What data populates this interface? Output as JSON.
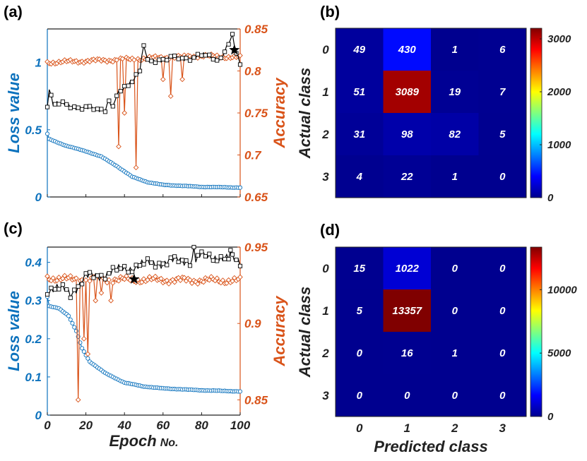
{
  "figure": {
    "panel_labels": [
      "(a)",
      "(b)",
      "(c)",
      "(d)"
    ],
    "colors": {
      "loss": "#0d72bd",
      "accuracy": "#d95319",
      "val_accuracy": "#000000"
    }
  },
  "chart_data": [
    {
      "panel": "(a)",
      "type": "line",
      "xlim": [
        0,
        100
      ],
      "ylabel_left": "Loss value",
      "ylabel_right": "Accuracy",
      "yticks_left": [
        "0",
        "0.5",
        "1"
      ],
      "yticks_right": [
        "0.65",
        "0.7",
        "0.75",
        "0.8",
        "0.85"
      ],
      "ylim_left": [
        0,
        1.25
      ],
      "ylim_right": [
        0.65,
        0.85
      ],
      "series": [
        {
          "name": "loss",
          "axis": "left",
          "marker": "circle",
          "anchors": [
            [
              0,
              0.47
            ],
            [
              1,
              0.43
            ],
            [
              10,
              0.38
            ],
            [
              20,
              0.34
            ],
            [
              28,
              0.3
            ],
            [
              36,
              0.23
            ],
            [
              44,
              0.15
            ],
            [
              52,
              0.11
            ],
            [
              60,
              0.09
            ],
            [
              80,
              0.075
            ],
            [
              100,
              0.07
            ]
          ]
        },
        {
          "name": "accuracy",
          "axis": "right",
          "marker": "diamond",
          "base": 0.81,
          "anchors": [
            [
              0,
              0.81
            ],
            [
              22,
              0.812
            ],
            [
              44,
              0.814
            ],
            [
              60,
              0.816
            ],
            [
              80,
              0.818
            ],
            [
              100,
              0.816
            ]
          ],
          "spikes": [
            [
              37,
              0.71
            ],
            [
              40,
              0.75
            ],
            [
              46,
              0.685
            ],
            [
              60,
              0.79
            ],
            [
              64,
              0.77
            ],
            [
              70,
              0.79
            ]
          ]
        },
        {
          "name": "val_accuracy",
          "axis": "right",
          "marker": "square",
          "anchors": [
            [
              0,
              0.76
            ],
            [
              1,
              0.78
            ],
            [
              3,
              0.76
            ],
            [
              10,
              0.76
            ],
            [
              20,
              0.755
            ],
            [
              30,
              0.755
            ],
            [
              32,
              0.765
            ],
            [
              34,
              0.755
            ],
            [
              36,
              0.77
            ],
            [
              40,
              0.78
            ],
            [
              48,
              0.8
            ],
            [
              50,
              0.83
            ],
            [
              52,
              0.81
            ],
            [
              60,
              0.815
            ],
            [
              70,
              0.815
            ],
            [
              80,
              0.818
            ],
            [
              90,
              0.815
            ],
            [
              96,
              0.84
            ],
            [
              98,
              0.82
            ],
            [
              100,
              0.81
            ]
          ]
        }
      ],
      "best_marker": [
        97,
        0.825
      ]
    },
    {
      "panel": "(b)",
      "type": "heatmap",
      "ylabel": "Actual class",
      "xlabel": "",
      "categories": [
        "0",
        "1",
        "2",
        "3"
      ],
      "matrix": [
        [
          49,
          430,
          1,
          6
        ],
        [
          51,
          3089,
          19,
          7
        ],
        [
          31,
          98,
          82,
          5
        ],
        [
          4,
          22,
          1,
          0
        ]
      ],
      "colorbar_ticks": [
        "0",
        "1000",
        "2000",
        "3000"
      ],
      "colorbar_max": 3200
    },
    {
      "panel": "(c)",
      "type": "line",
      "xlim": [
        0,
        100
      ],
      "xticks": [
        "0",
        "20",
        "40",
        "60",
        "80",
        "100"
      ],
      "xlabel": "Epoch",
      "xlabel_suffix": "No.",
      "ylabel_left": "Loss value",
      "ylabel_right": "Accuracy",
      "yticks_left": [
        "0",
        "0.1",
        "0.2",
        "0.3",
        "0.4"
      ],
      "yticks_right": [
        "0.85",
        "0.9",
        "0.95"
      ],
      "ylim_left": [
        0,
        0.44
      ],
      "ylim_right": [
        0.84,
        0.95
      ],
      "series": [
        {
          "name": "loss",
          "axis": "left",
          "marker": "circle",
          "anchors": [
            [
              0,
              0.31
            ],
            [
              1,
              0.285
            ],
            [
              6,
              0.28
            ],
            [
              11,
              0.26
            ],
            [
              15,
              0.22
            ],
            [
              18,
              0.175
            ],
            [
              22,
              0.14
            ],
            [
              30,
              0.11
            ],
            [
              40,
              0.085
            ],
            [
              50,
              0.075
            ],
            [
              60,
              0.07
            ],
            [
              80,
              0.065
            ],
            [
              100,
              0.062
            ]
          ]
        },
        {
          "name": "accuracy",
          "axis": "right",
          "marker": "diamond",
          "base": 0.928,
          "anchors": [
            [
              0,
              0.93
            ],
            [
              10,
              0.929
            ],
            [
              100,
              0.928
            ]
          ],
          "spikes": [
            [
              16,
              0.85
            ],
            [
              19,
              0.89
            ],
            [
              21,
              0.88
            ],
            [
              25,
              0.915
            ],
            [
              28,
              0.92
            ],
            [
              33,
              0.915
            ]
          ]
        },
        {
          "name": "val_accuracy",
          "axis": "right",
          "marker": "square",
          "anchors": [
            [
              0,
              0.922
            ],
            [
              10,
              0.922
            ],
            [
              12,
              0.92
            ],
            [
              16,
              0.925
            ],
            [
              20,
              0.93
            ],
            [
              28,
              0.932
            ],
            [
              38,
              0.935
            ],
            [
              48,
              0.938
            ],
            [
              58,
              0.94
            ],
            [
              68,
              0.941
            ],
            [
              78,
              0.942
            ],
            [
              88,
              0.944
            ],
            [
              100,
              0.94
            ]
          ],
          "spikes": [
            [
              76,
              0.95
            ],
            [
              80,
              0.947
            ],
            [
              95,
              0.948
            ]
          ]
        }
      ],
      "best_marker": [
        45,
        0.929
      ]
    },
    {
      "panel": "(d)",
      "type": "heatmap",
      "ylabel": "Actual class",
      "xlabel": "Predicted class",
      "categories": [
        "0",
        "1",
        "2",
        "3"
      ],
      "matrix": [
        [
          15,
          1022,
          0,
          0
        ],
        [
          5,
          13357,
          0,
          0
        ],
        [
          0,
          16,
          1,
          0
        ],
        [
          0,
          0,
          0,
          0
        ]
      ],
      "colorbar_ticks": [
        "0",
        "5000",
        "10000"
      ],
      "colorbar_max": 13357
    }
  ]
}
